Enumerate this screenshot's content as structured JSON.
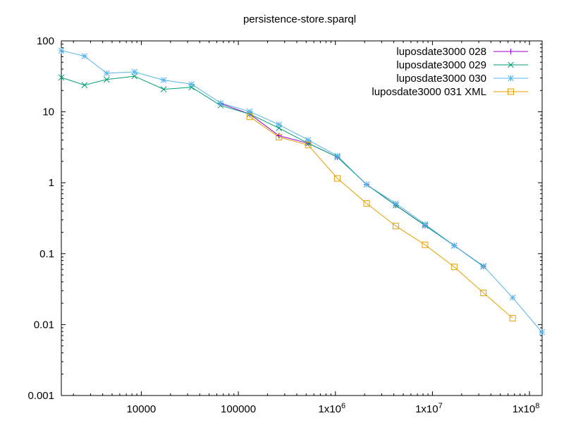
{
  "chart_data": {
    "type": "line",
    "title": "persistence-store.sparql",
    "x_scale": "log",
    "y_scale": "log",
    "xlim": [
      1500,
      135000000
    ],
    "ylim": [
      0.001,
      100
    ],
    "grid": false,
    "legend_position": "top-right",
    "x_ticks": [
      {
        "value": 10000,
        "label": "10000",
        "sup": ""
      },
      {
        "value": 100000,
        "label": "100000",
        "sup": ""
      },
      {
        "value": 1000000,
        "label": "1x10",
        "sup": "6"
      },
      {
        "value": 10000000,
        "label": "1x10",
        "sup": "7"
      },
      {
        "value": 100000000,
        "label": "1x10",
        "sup": "8"
      }
    ],
    "y_ticks": [
      {
        "value": 0.001,
        "label": "0.001"
      },
      {
        "value": 0.01,
        "label": "0.01"
      },
      {
        "value": 0.1,
        "label": "0.1"
      },
      {
        "value": 1,
        "label": "1"
      },
      {
        "value": 10,
        "label": "10"
      },
      {
        "value": 100,
        "label": "100"
      }
    ],
    "series": [
      {
        "name": "luposdate3000 028",
        "color": "#9400d3",
        "marker": "plus",
        "points": [
          [
            65536,
            13.1
          ],
          [
            131072,
            9.3
          ],
          [
            262144,
            4.6
          ],
          [
            524288,
            3.6
          ],
          [
            1048576,
            2.3
          ],
          [
            2097152,
            0.95
          ],
          [
            4194304,
            0.48
          ],
          [
            8388608,
            0.25
          ],
          [
            16777216,
            0.13
          ],
          [
            33554432,
            0.066
          ]
        ]
      },
      {
        "name": "luposdate3000 029",
        "color": "#009e73",
        "marker": "cross",
        "points": [
          [
            1500,
            30.5
          ],
          [
            2600,
            23.8
          ],
          [
            4400,
            28.5
          ],
          [
            8500,
            31.8
          ],
          [
            17000,
            20.8
          ],
          [
            33000,
            22.2
          ],
          [
            65536,
            12.3
          ],
          [
            131072,
            9.3
          ],
          [
            262144,
            5.9
          ],
          [
            524288,
            3.6
          ],
          [
            1048576,
            2.3
          ],
          [
            2097152,
            0.94
          ],
          [
            4194304,
            0.48
          ],
          [
            8388608,
            0.25
          ],
          [
            16777216,
            0.13
          ],
          [
            33554432,
            0.066
          ]
        ]
      },
      {
        "name": "luposdate3000 030",
        "color": "#56b4e9",
        "marker": "star",
        "points": [
          [
            1500,
            73
          ],
          [
            2600,
            61
          ],
          [
            4400,
            35
          ],
          [
            8500,
            36.5
          ],
          [
            17000,
            28
          ],
          [
            33000,
            24.5
          ],
          [
            65536,
            13.3
          ],
          [
            131072,
            10.1
          ],
          [
            262144,
            6.6
          ],
          [
            524288,
            4.0
          ],
          [
            1048576,
            2.4
          ],
          [
            2097152,
            0.94
          ],
          [
            4194304,
            0.51
          ],
          [
            8388608,
            0.26
          ],
          [
            16777216,
            0.13
          ],
          [
            33554432,
            0.067
          ],
          [
            67108864,
            0.024
          ],
          [
            134217728,
            0.0078
          ]
        ]
      },
      {
        "name": "luposdate3000 031 XML",
        "color": "#e69f00",
        "marker": "square",
        "points": [
          [
            131072,
            8.5
          ],
          [
            262144,
            4.4
          ],
          [
            524288,
            3.4
          ],
          [
            1048576,
            1.15
          ],
          [
            2097152,
            0.51
          ],
          [
            4194304,
            0.245
          ],
          [
            8388608,
            0.133
          ],
          [
            16777216,
            0.065
          ],
          [
            33554432,
            0.028
          ],
          [
            67108864,
            0.0123
          ]
        ]
      }
    ]
  }
}
